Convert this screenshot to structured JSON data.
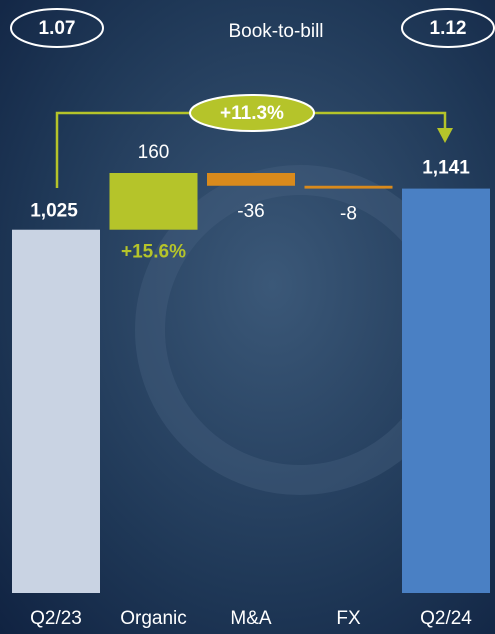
{
  "chart_data": {
    "type": "waterfall",
    "categories": [
      "Q2/23",
      "Organic",
      "M&A",
      "FX",
      "Q2/24"
    ],
    "values": [
      1025,
      160,
      -36,
      -8,
      1141
    ],
    "value_labels": [
      "1,025",
      "160",
      "-36",
      "-8",
      "1,141"
    ],
    "colors": [
      "#c9d3e3",
      "#b5c42a",
      "#d98a1c",
      "#d98a1c",
      "#4a80c4"
    ],
    "organic_growth": "+15.6%",
    "total_growth": "+11.3%",
    "book_to_bill": {
      "label": "Book-to-bill",
      "start": 1.07,
      "end": 1.12
    }
  }
}
